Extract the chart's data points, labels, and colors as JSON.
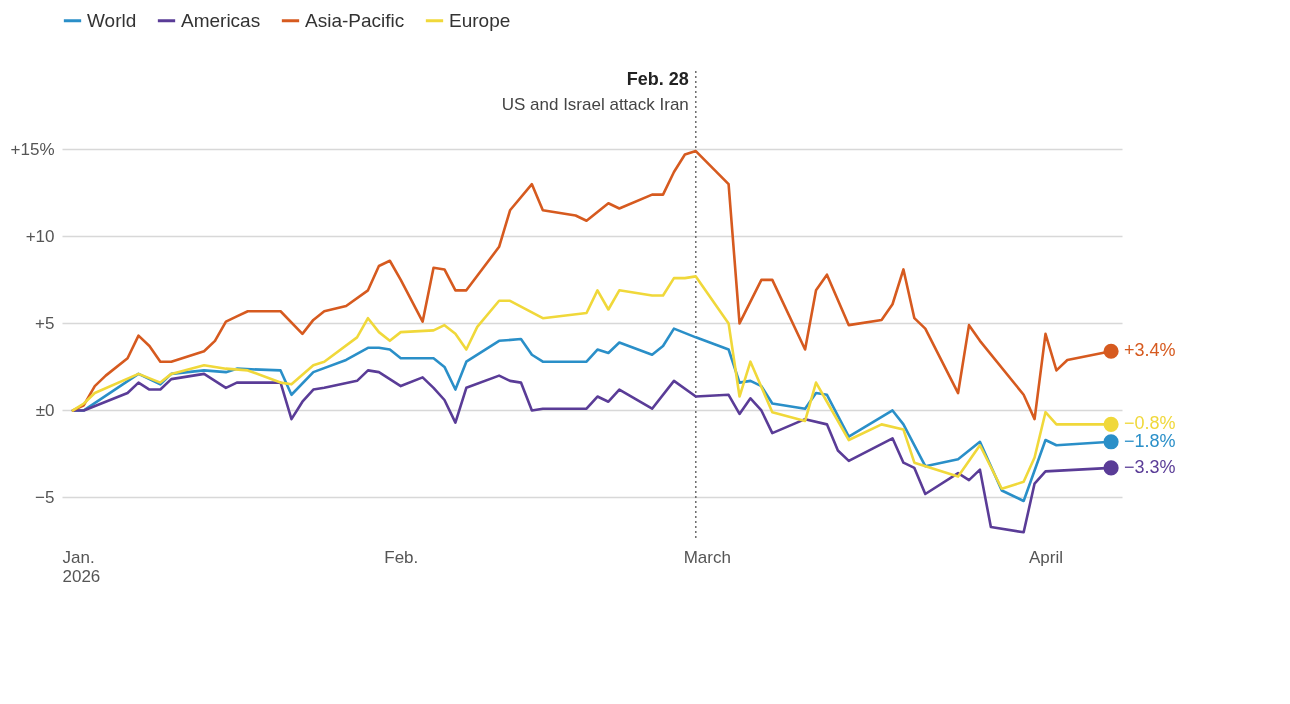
{
  "chart_data": {
    "type": "line",
    "xlim": [
      "2026-01-01",
      "2026-04-08"
    ],
    "xticks": [
      {
        "value": "2026-01-01",
        "label": "Jan.\n2026"
      },
      {
        "value": "2026-02-01",
        "label": "Feb."
      },
      {
        "value": "2026-03-01",
        "label": "March"
      },
      {
        "value": "2026-04-01",
        "label": "April"
      }
    ],
    "ylim": [
      -7.5,
      19.5
    ],
    "yticks": [
      {
        "value": -5,
        "label": "−5"
      },
      {
        "value": 0,
        "label": "±0"
      },
      {
        "value": 5,
        "label": "+5"
      },
      {
        "value": 10,
        "label": "+10"
      },
      {
        "value": 15,
        "label": "+15%"
      }
    ],
    "grid": "y",
    "legend": "top left",
    "ref_lines": [
      {
        "axis": "x",
        "value": "2026-02-28",
        "label": "Feb. 28",
        "line_style": "dotted"
      }
    ],
    "annotations": [
      "US and Israel attack Iran"
    ],
    "series": [
      {
        "name": "World",
        "color": "#2a8fc8",
        "x": [
          "2026-01-02",
          "2026-01-03",
          "2026-01-08",
          "2026-01-10",
          "2026-01-11",
          "2026-01-14",
          "2026-01-16",
          "2026-01-17",
          "2026-01-21",
          "2026-01-22",
          "2026-01-24",
          "2026-01-27",
          "2026-01-29",
          "2026-01-30",
          "2026-01-31",
          "2026-02-01",
          "2026-02-04",
          "2026-02-05",
          "2026-02-06",
          "2026-02-07",
          "2026-02-10",
          "2026-02-12",
          "2026-02-13",
          "2026-02-14",
          "2026-02-18",
          "2026-02-19",
          "2026-02-20",
          "2026-02-21",
          "2026-02-24",
          "2026-02-25",
          "2026-02-26",
          "2026-02-28",
          "2026-03-03",
          "2026-03-04",
          "2026-03-05",
          "2026-03-06",
          "2026-03-07",
          "2026-03-08",
          "2026-03-10",
          "2026-03-11",
          "2026-03-12",
          "2026-03-14",
          "2026-03-18",
          "2026-03-19",
          "2026-03-21",
          "2026-03-24",
          "2026-03-26",
          "2026-03-28",
          "2026-03-30",
          "2026-04-01",
          "2026-04-02",
          "2026-04-07"
        ],
        "values": [
          0.0,
          0.0,
          2.1,
          1.5,
          2.1,
          2.3,
          2.2,
          2.4,
          2.3,
          0.9,
          2.2,
          2.9,
          3.6,
          3.6,
          3.5,
          3.0,
          3.0,
          2.5,
          1.2,
          2.8,
          4.0,
          4.1,
          3.2,
          2.8,
          2.8,
          3.5,
          3.3,
          3.9,
          3.2,
          3.7,
          4.7,
          4.2,
          3.5,
          1.6,
          1.7,
          1.4,
          0.4,
          0.3,
          0.1,
          1.0,
          0.9,
          -1.5,
          0.0,
          -0.8,
          -3.2,
          -2.8,
          -1.8,
          -4.6,
          -5.2,
          -1.7,
          -2.0,
          -1.8
        ],
        "value_labels": [
          null,
          null,
          null,
          null,
          null,
          null,
          null,
          null,
          null,
          null,
          null,
          null,
          null,
          null,
          null,
          null,
          null,
          null,
          null,
          null,
          null,
          null,
          null,
          null,
          null,
          null,
          null,
          null,
          null,
          null,
          null,
          null,
          null,
          null,
          null,
          null,
          null,
          null,
          null,
          null,
          null,
          null,
          null,
          null,
          null,
          null,
          null,
          null,
          null,
          null,
          null,
          "−1.8%"
        ]
      },
      {
        "name": "Americas",
        "color": "#5a3c97",
        "x": [
          "2026-01-02",
          "2026-01-03",
          "2026-01-07",
          "2026-01-08",
          "2026-01-09",
          "2026-01-10",
          "2026-01-11",
          "2026-01-14",
          "2026-01-16",
          "2026-01-17",
          "2026-01-21",
          "2026-01-22",
          "2026-01-23",
          "2026-01-24",
          "2026-01-25",
          "2026-01-28",
          "2026-01-29",
          "2026-01-30",
          "2026-02-01",
          "2026-02-03",
          "2026-02-04",
          "2026-02-05",
          "2026-02-06",
          "2026-02-07",
          "2026-02-10",
          "2026-02-11",
          "2026-02-12",
          "2026-02-13",
          "2026-02-14",
          "2026-02-18",
          "2026-02-19",
          "2026-02-20",
          "2026-02-21",
          "2026-02-24",
          "2026-02-26",
          "2026-02-28",
          "2026-03-03",
          "2026-03-04",
          "2026-03-05",
          "2026-03-06",
          "2026-03-07",
          "2026-03-10",
          "2026-03-12",
          "2026-03-13",
          "2026-03-14",
          "2026-03-18",
          "2026-03-19",
          "2026-03-20",
          "2026-03-21",
          "2026-03-24",
          "2026-03-25",
          "2026-03-26",
          "2026-03-27",
          "2026-03-30",
          "2026-03-31",
          "2026-04-01",
          "2026-04-07"
        ],
        "values": [
          0.0,
          0.0,
          1.0,
          1.6,
          1.2,
          1.2,
          1.8,
          2.1,
          1.3,
          1.6,
          1.6,
          -0.5,
          0.5,
          1.2,
          1.3,
          1.7,
          2.3,
          2.2,
          1.4,
          1.9,
          1.3,
          0.6,
          -0.7,
          1.3,
          2.0,
          1.7,
          1.6,
          0.0,
          0.1,
          0.1,
          0.8,
          0.5,
          1.2,
          0.1,
          1.7,
          0.8,
          0.9,
          -0.2,
          0.7,
          0.0,
          -1.3,
          -0.5,
          -0.8,
          -2.3,
          -2.9,
          -1.6,
          -3.0,
          -3.3,
          -4.8,
          -3.6,
          -4.0,
          -3.4,
          -6.7,
          -7.0,
          -4.2,
          -3.5,
          -3.3
        ],
        "value_labels": [
          null,
          null,
          null,
          null,
          null,
          null,
          null,
          null,
          null,
          null,
          null,
          null,
          null,
          null,
          null,
          null,
          null,
          null,
          null,
          null,
          null,
          null,
          null,
          null,
          null,
          null,
          null,
          null,
          null,
          null,
          null,
          null,
          null,
          null,
          null,
          null,
          null,
          null,
          null,
          null,
          null,
          null,
          null,
          null,
          null,
          null,
          null,
          null,
          null,
          null,
          null,
          null,
          null,
          null,
          null,
          null,
          "−3.3%"
        ]
      },
      {
        "name": "Asia-Pacific",
        "color": "#d65a1f",
        "x": [
          "2026-01-02",
          "2026-01-03",
          "2026-01-04",
          "2026-01-05",
          "2026-01-07",
          "2026-01-08",
          "2026-01-09",
          "2026-01-10",
          "2026-01-11",
          "2026-01-14",
          "2026-01-15",
          "2026-01-16",
          "2026-01-17",
          "2026-01-18",
          "2026-01-21",
          "2026-01-23",
          "2026-01-24",
          "2026-01-25",
          "2026-01-27",
          "2026-01-29",
          "2026-01-30",
          "2026-01-31",
          "2026-02-01",
          "2026-02-03",
          "2026-02-04",
          "2026-02-05",
          "2026-02-06",
          "2026-02-07",
          "2026-02-10",
          "2026-02-11",
          "2026-02-13",
          "2026-02-14",
          "2026-02-17",
          "2026-02-18",
          "2026-02-20",
          "2026-02-21",
          "2026-02-24",
          "2026-02-25",
          "2026-02-26",
          "2026-02-27",
          "2026-02-28",
          "2026-03-03",
          "2026-03-04",
          "2026-03-06",
          "2026-03-07",
          "2026-03-10",
          "2026-03-11",
          "2026-03-12",
          "2026-03-14",
          "2026-03-17",
          "2026-03-18",
          "2026-03-19",
          "2026-03-20",
          "2026-03-21",
          "2026-03-24",
          "2026-03-25",
          "2026-03-26",
          "2026-03-30",
          "2026-03-31",
          "2026-04-01",
          "2026-04-02",
          "2026-04-03",
          "2026-04-07"
        ],
        "values": [
          0.0,
          0.3,
          1.4,
          2.0,
          3.0,
          4.3,
          3.7,
          2.8,
          2.8,
          3.4,
          4.0,
          5.1,
          5.4,
          5.7,
          5.7,
          4.4,
          5.2,
          5.7,
          6.0,
          6.9,
          8.3,
          8.6,
          7.5,
          5.1,
          8.2,
          8.1,
          6.9,
          6.9,
          9.4,
          11.5,
          13.0,
          11.5,
          11.2,
          10.9,
          11.9,
          11.6,
          12.4,
          12.4,
          13.7,
          14.7,
          14.9,
          13.0,
          5.0,
          7.5,
          7.5,
          3.5,
          6.9,
          7.8,
          4.9,
          5.2,
          6.1,
          8.1,
          5.3,
          4.7,
          1.0,
          4.9,
          4.0,
          0.9,
          -0.5,
          4.4,
          2.3,
          2.9,
          3.4
        ],
        "value_labels": [
          null,
          null,
          null,
          null,
          null,
          null,
          null,
          null,
          null,
          null,
          null,
          null,
          null,
          null,
          null,
          null,
          null,
          null,
          null,
          null,
          null,
          null,
          null,
          null,
          null,
          null,
          null,
          null,
          null,
          null,
          null,
          null,
          null,
          null,
          null,
          null,
          null,
          null,
          null,
          null,
          null,
          null,
          null,
          null,
          null,
          null,
          null,
          null,
          null,
          null,
          null,
          null,
          null,
          null,
          null,
          null,
          null,
          null,
          null,
          null,
          null,
          null,
          "+3.4%"
        ]
      },
      {
        "name": "Europe",
        "color": "#f0d83a",
        "x": [
          "2026-01-02",
          "2026-01-03",
          "2026-01-04",
          "2026-01-08",
          "2026-01-10",
          "2026-01-11",
          "2026-01-14",
          "2026-01-16",
          "2026-01-18",
          "2026-01-21",
          "2026-01-22",
          "2026-01-24",
          "2026-01-25",
          "2026-01-28",
          "2026-01-29",
          "2026-01-30",
          "2026-01-31",
          "2026-02-01",
          "2026-02-04",
          "2026-02-05",
          "2026-02-06",
          "2026-02-07",
          "2026-02-08",
          "2026-02-10",
          "2026-02-11",
          "2026-02-14",
          "2026-02-18",
          "2026-02-19",
          "2026-02-20",
          "2026-02-21",
          "2026-02-24",
          "2026-02-25",
          "2026-02-26",
          "2026-02-27",
          "2026-02-28",
          "2026-03-03",
          "2026-03-04",
          "2026-03-05",
          "2026-03-07",
          "2026-03-10",
          "2026-03-11",
          "2026-03-12",
          "2026-03-14",
          "2026-03-17",
          "2026-03-19",
          "2026-03-20",
          "2026-03-24",
          "2026-03-26",
          "2026-03-28",
          "2026-03-30",
          "2026-03-31",
          "2026-04-01",
          "2026-04-02",
          "2026-04-07"
        ],
        "values": [
          0.0,
          0.4,
          1.0,
          2.1,
          1.6,
          2.1,
          2.6,
          2.4,
          2.3,
          1.6,
          1.5,
          2.6,
          2.8,
          4.2,
          5.3,
          4.5,
          4.0,
          4.5,
          4.6,
          4.9,
          4.4,
          3.5,
          4.8,
          6.3,
          6.3,
          5.3,
          5.6,
          6.9,
          5.8,
          6.9,
          6.6,
          6.6,
          7.6,
          7.6,
          7.7,
          5.0,
          0.8,
          2.8,
          -0.1,
          -0.6,
          1.6,
          0.5,
          -1.7,
          -0.8,
          -1.1,
          -3.0,
          -3.8,
          -2.0,
          -4.5,
          -4.1,
          -2.7,
          -0.1,
          -0.8,
          -0.8
        ],
        "value_labels": [
          null,
          null,
          null,
          null,
          null,
          null,
          null,
          null,
          null,
          null,
          null,
          null,
          null,
          null,
          null,
          null,
          null,
          null,
          null,
          null,
          null,
          null,
          null,
          null,
          null,
          null,
          null,
          null,
          null,
          null,
          null,
          null,
          null,
          null,
          null,
          null,
          null,
          null,
          null,
          null,
          null,
          null,
          null,
          null,
          null,
          null,
          null,
          null,
          null,
          null,
          null,
          null,
          null,
          "−0.8%"
        ]
      }
    ]
  }
}
